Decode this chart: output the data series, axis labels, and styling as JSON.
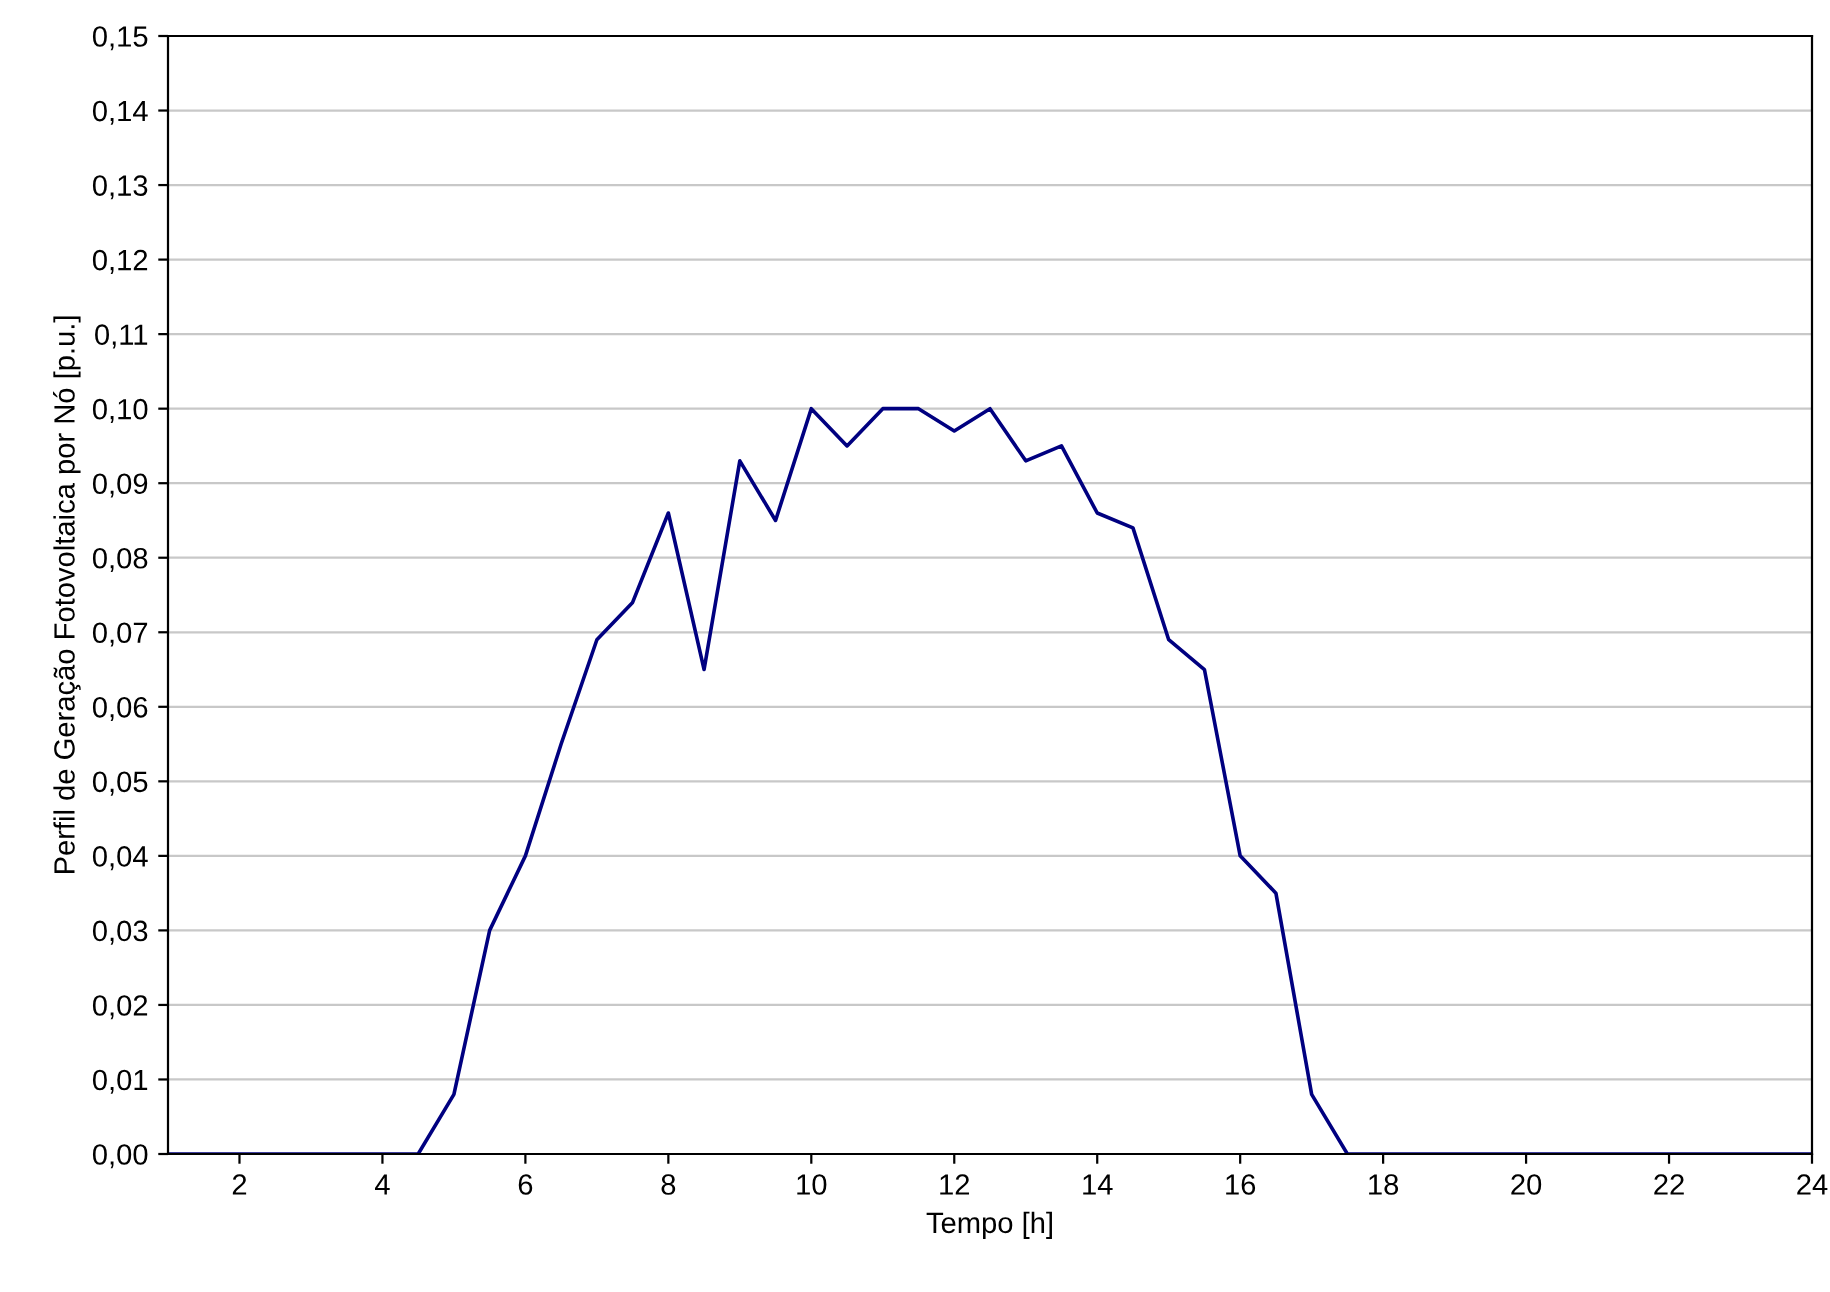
{
  "chart_data": {
    "type": "line",
    "xlabel": "Tempo [h]",
    "ylabel": "Perfil de Geração Fotovoltaica por Nó [p.u.]",
    "x": [
      1,
      1.5,
      2,
      2.5,
      3,
      3.5,
      4,
      4.5,
      5,
      5.5,
      6,
      6.5,
      7,
      7.5,
      8,
      8.5,
      9,
      9.5,
      10,
      10.5,
      11,
      11.5,
      12,
      12.5,
      13,
      13.5,
      14,
      14.5,
      15,
      15.5,
      16,
      16.5,
      17,
      17.5,
      18,
      18.5,
      19,
      19.5,
      20,
      20.5,
      21,
      21.5,
      22,
      22.5,
      23,
      23.5,
      24
    ],
    "series": [
      {
        "color": "#000080",
        "values": [
          0,
          0,
          0,
          0,
          0,
          0,
          0,
          0,
          0.008,
          0.03,
          0.04,
          0.055,
          0.069,
          0.074,
          0.086,
          0.065,
          0.093,
          0.085,
          0.1,
          0.095,
          0.1,
          0.1,
          0.097,
          0.1,
          0.093,
          0.095,
          0.086,
          0.084,
          0.069,
          0.065,
          0.04,
          0.035,
          0.008,
          0,
          0,
          0,
          0,
          0,
          0,
          0,
          0,
          0,
          0,
          0,
          0,
          0,
          0
        ]
      }
    ],
    "xlim": [
      1,
      24
    ],
    "xticks": [
      2,
      4,
      6,
      8,
      10,
      12,
      14,
      16,
      18,
      20,
      22,
      24
    ],
    "ylim": [
      0,
      0.15
    ],
    "yticks": [
      {
        "value": 0,
        "label": "0,00"
      },
      {
        "value": 0.01,
        "label": "0,01"
      },
      {
        "value": 0.02,
        "label": "0,02"
      },
      {
        "value": 0.03,
        "label": "0,03"
      },
      {
        "value": 0.04,
        "label": "0,04"
      },
      {
        "value": 0.05,
        "label": "0,05"
      },
      {
        "value": 0.06,
        "label": "0,06"
      },
      {
        "value": 0.07,
        "label": "0,07"
      },
      {
        "value": 0.08,
        "label": "0,08"
      },
      {
        "value": 0.09,
        "label": "0,09"
      },
      {
        "value": 0.1,
        "label": "0,10"
      },
      {
        "value": 0.11,
        "label": "0,11"
      },
      {
        "value": 0.12,
        "label": "0,12"
      },
      {
        "value": 0.13,
        "label": "0,13"
      },
      {
        "value": 0.14,
        "label": "0,14"
      },
      {
        "value": 0.15,
        "label": "0,15"
      }
    ],
    "grid": "y",
    "legend": false,
    "marker": "none",
    "line_style": "solid"
  }
}
